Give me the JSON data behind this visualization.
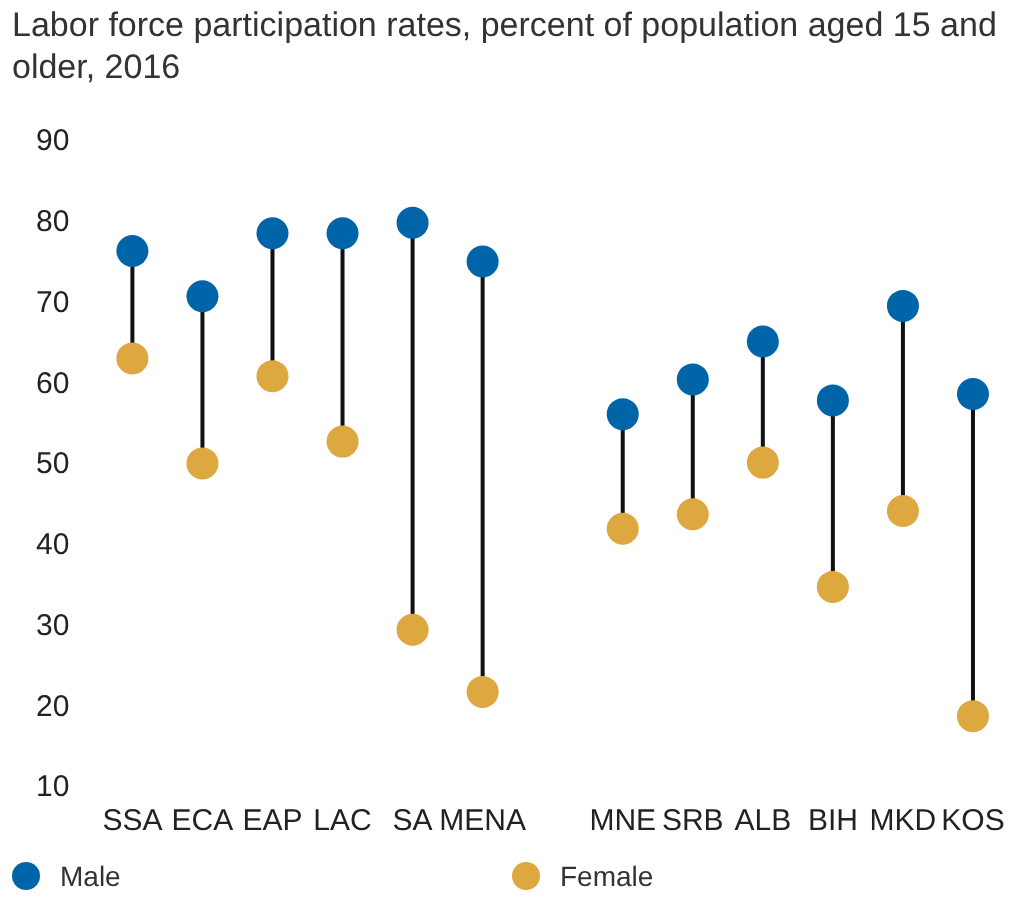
{
  "chart_data": {
    "type": "scatter",
    "title": "Labor force participation rates, percent of population aged 15 and older, 2016",
    "categories": [
      "SSA",
      "ECA",
      "EAP",
      "LAC",
      "SA",
      "MENA",
      null,
      "MNE",
      "SRB",
      "ALB",
      "BIH",
      "MKD",
      "KOS"
    ],
    "series": [
      {
        "name": "Male",
        "color": "#0065a8",
        "values": [
          76.5,
          70.9,
          78.7,
          78.7,
          80.0,
          75.2,
          null,
          56.3,
          60.6,
          65.3,
          58.0,
          69.7,
          58.8
        ]
      },
      {
        "name": "Female",
        "color": "#dea840",
        "values": [
          63.2,
          50.2,
          61.0,
          52.9,
          29.6,
          21.9,
          null,
          42.1,
          43.9,
          50.3,
          34.9,
          44.3,
          18.9
        ]
      }
    ],
    "ylim": [
      10,
      90
    ],
    "yticks": [
      10,
      20,
      30,
      40,
      50,
      60,
      70,
      80,
      90
    ],
    "grid": false,
    "legend": "bottom left",
    "marker": "circle"
  }
}
